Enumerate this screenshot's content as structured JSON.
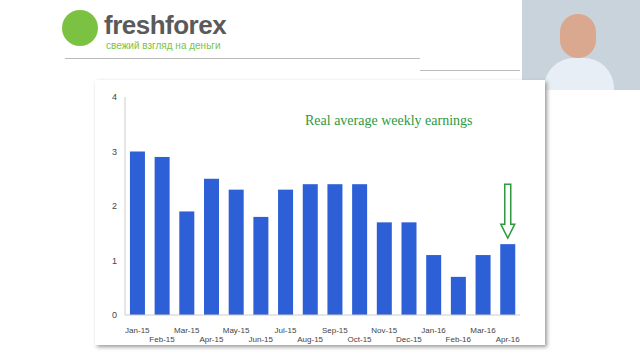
{
  "slide": {
    "logo": "freshforex",
    "tagline": "свежий взгляд на деньги"
  },
  "chart_data": {
    "type": "bar",
    "title": "Real average weekly earnings",
    "categories": [
      "Jan-15",
      "Feb-15",
      "Mar-15",
      "Apr-15",
      "May-15",
      "Jun-15",
      "Jul-15",
      "Aug-15",
      "Sep-15",
      "Oct-15",
      "Nov-15",
      "Dec-15",
      "Jan-16",
      "Feb-16",
      "Mar-16",
      "Apr-16"
    ],
    "values": [
      3.0,
      2.9,
      1.9,
      2.5,
      2.3,
      1.8,
      2.3,
      2.4,
      2.4,
      2.4,
      1.7,
      1.7,
      1.1,
      0.7,
      1.1,
      1.3
    ],
    "color": "#2d5fd6",
    "ylim": [
      0,
      4
    ],
    "yticks": [
      0,
      1,
      2,
      3,
      4
    ],
    "grid": false
  }
}
